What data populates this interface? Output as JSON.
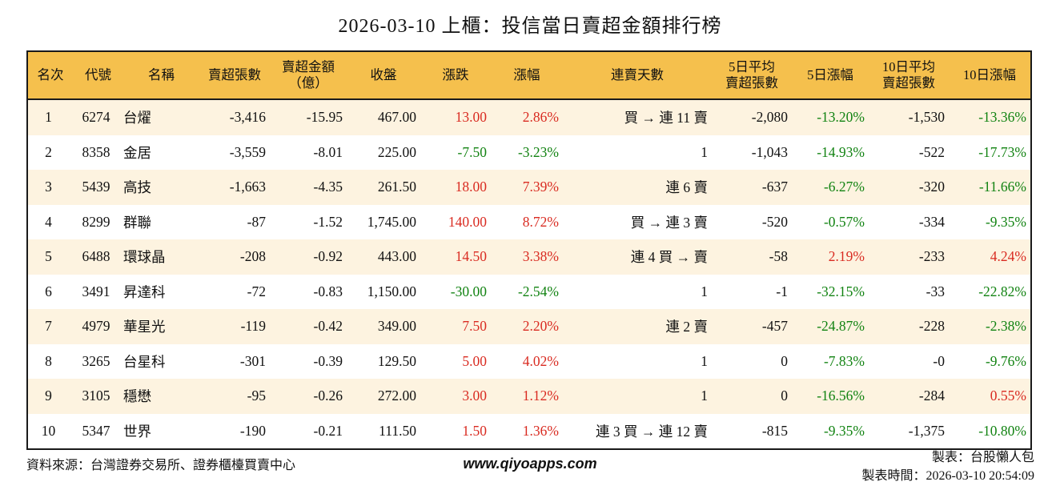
{
  "title": "2026-03-10 上櫃：投信當日賣超金額排行榜",
  "colors": {
    "up": "#d92b21",
    "down": "#128312",
    "header_bg": "#f5c04d",
    "stripe_bg": "#fdf3e0",
    "border": "#1a1a1a"
  },
  "table": {
    "headers": [
      "名次",
      "代號",
      "名稱",
      "賣超張數",
      "賣超金額\n（億）",
      "收盤",
      "漲跌",
      "漲幅",
      "連賣天數",
      "5日平均\n賣超張數",
      "5日漲幅",
      "10日平均\n賣超張數",
      "10日漲幅"
    ],
    "rows": [
      {
        "rank": "1",
        "code": "6274",
        "name": "台燿",
        "sell_shares": "-3,416",
        "sell_amount": "-15.95",
        "close": "467.00",
        "change": "13.00",
        "change_pct": "2.86%",
        "streak": "買 → 連 11 賣",
        "avg5": "-2,080",
        "pct5": "-13.20%",
        "avg10": "-1,530",
        "pct10": "-13.36%"
      },
      {
        "rank": "2",
        "code": "8358",
        "name": "金居",
        "sell_shares": "-3,559",
        "sell_amount": "-8.01",
        "close": "225.00",
        "change": "-7.50",
        "change_pct": "-3.23%",
        "streak": "1",
        "avg5": "-1,043",
        "pct5": "-14.93%",
        "avg10": "-522",
        "pct10": "-17.73%"
      },
      {
        "rank": "3",
        "code": "5439",
        "name": "高技",
        "sell_shares": "-1,663",
        "sell_amount": "-4.35",
        "close": "261.50",
        "change": "18.00",
        "change_pct": "7.39%",
        "streak": "連 6 賣",
        "avg5": "-637",
        "pct5": "-6.27%",
        "avg10": "-320",
        "pct10": "-11.66%"
      },
      {
        "rank": "4",
        "code": "8299",
        "name": "群聯",
        "sell_shares": "-87",
        "sell_amount": "-1.52",
        "close": "1,745.00",
        "change": "140.00",
        "change_pct": "8.72%",
        "streak": "買 → 連 3 賣",
        "avg5": "-520",
        "pct5": "-0.57%",
        "avg10": "-334",
        "pct10": "-9.35%"
      },
      {
        "rank": "5",
        "code": "6488",
        "name": "環球晶",
        "sell_shares": "-208",
        "sell_amount": "-0.92",
        "close": "443.00",
        "change": "14.50",
        "change_pct": "3.38%",
        "streak": "連 4 買 → 賣",
        "avg5": "-58",
        "pct5": "2.19%",
        "avg10": "-233",
        "pct10": "4.24%"
      },
      {
        "rank": "6",
        "code": "3491",
        "name": "昇達科",
        "sell_shares": "-72",
        "sell_amount": "-0.83",
        "close": "1,150.00",
        "change": "-30.00",
        "change_pct": "-2.54%",
        "streak": "1",
        "avg5": "-1",
        "pct5": "-32.15%",
        "avg10": "-33",
        "pct10": "-22.82%"
      },
      {
        "rank": "7",
        "code": "4979",
        "name": "華星光",
        "sell_shares": "-119",
        "sell_amount": "-0.42",
        "close": "349.00",
        "change": "7.50",
        "change_pct": "2.20%",
        "streak": "連 2 賣",
        "avg5": "-457",
        "pct5": "-24.87%",
        "avg10": "-228",
        "pct10": "-2.38%"
      },
      {
        "rank": "8",
        "code": "3265",
        "name": "台星科",
        "sell_shares": "-301",
        "sell_amount": "-0.39",
        "close": "129.50",
        "change": "5.00",
        "change_pct": "4.02%",
        "streak": "1",
        "avg5": "0",
        "pct5": "-7.83%",
        "avg10": "-0",
        "pct10": "-9.76%"
      },
      {
        "rank": "9",
        "code": "3105",
        "name": "穩懋",
        "sell_shares": "-95",
        "sell_amount": "-0.26",
        "close": "272.00",
        "change": "3.00",
        "change_pct": "1.12%",
        "streak": "1",
        "avg5": "0",
        "pct5": "-16.56%",
        "avg10": "-284",
        "pct10": "0.55%"
      },
      {
        "rank": "10",
        "code": "5347",
        "name": "世界",
        "sell_shares": "-190",
        "sell_amount": "-0.21",
        "close": "111.50",
        "change": "1.50",
        "change_pct": "1.36%",
        "streak": "連 3 買 → 連 12 賣",
        "avg5": "-815",
        "pct5": "-9.35%",
        "avg10": "-1,375",
        "pct10": "-10.80%"
      }
    ]
  },
  "footer": {
    "source": "資料來源：台灣證券交易所、證券櫃檯買賣中心",
    "website": "www.qiyoapps.com",
    "author": "製表：台股懶人包",
    "generated": "製表時間：2026-03-10 20:54:09"
  }
}
